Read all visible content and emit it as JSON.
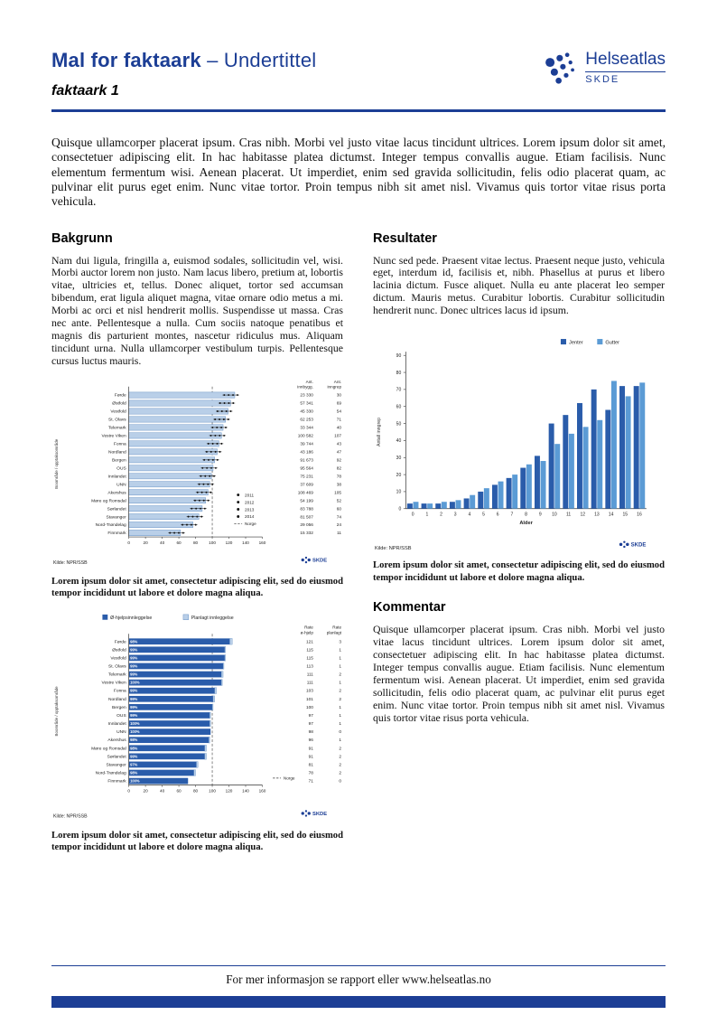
{
  "header": {
    "title_main": "Mal for faktaark",
    "title_sub": "– Undertittel",
    "subtitle": "faktaark 1",
    "logo": {
      "name": "Helseatlas",
      "org": "SKDE"
    }
  },
  "intro": "Quisque ullamcorper placerat ipsum. Cras nibh. Morbi vel justo vitae lacus tincidunt ultrices. Lorem ipsum dolor sit amet, consectetuer adipiscing elit. In hac habitasse platea dictumst. Integer tempus convallis augue. Etiam facilisis. Nunc elementum fermentum wisi. Aenean placerat. Ut imperdiet, enim sed gravida sollicitudin, felis odio placerat quam, ac pulvinar elit purus eget enim. Nunc vitae tortor. Proin tempus nibh sit amet nisl. Vivamus quis tortor vitae risus porta vehicula.",
  "sections": {
    "bakgrunn": {
      "heading": "Bakgrunn",
      "body": "Nam dui ligula, fringilla a, euismod sodales, sollicitudin vel, wisi. Morbi auctor lorem non justo. Nam lacus libero, pretium at, lobortis vitae, ultricies et, tellus. Donec aliquet, tortor sed accumsan bibendum, erat ligula aliquet magna, vitae ornare odio metus a mi. Morbi ac orci et nisl hendrerit mollis. Suspendisse ut massa. Cras nec ante. Pellentesque a nulla. Cum sociis natoque penatibus et magnis dis parturient montes, nascetur ridiculus mus. Aliquam tincidunt urna. Nulla ullamcorper vestibulum turpis. Pellentesque cursus luctus mauris."
    },
    "resultater": {
      "heading": "Resultater",
      "body": "Nunc sed pede. Praesent vitae lectus. Praesent neque justo, vehicula eget, interdum id, facilisis et, nibh. Phasellus at purus et libero lacinia dictum. Fusce aliquet. Nulla eu ante placerat leo semper dictum. Mauris metus. Curabitur lobortis. Curabitur sollicitudin hendrerit nunc. Donec ultrices lacus id ipsum."
    },
    "kommentar": {
      "heading": "Kommentar",
      "body": "Quisque ullamcorper placerat ipsum. Cras nibh. Morbi vel justo vitae lacus tincidunt ultrices. Lorem ipsum dolor sit amet, consectetuer adipiscing elit. In hac habitasse platea dictumst. Integer tempus convallis augue. Etiam facilisis. Nunc elementum fermentum wisi. Aenean placerat. Ut imperdiet, enim sed gravida sollicitudin, felis odio placerat quam, ac pulvinar elit purus eget enim. Nunc vitae tortor. Proin tempus nibh sit amet nisl. Vivamus quis tortor vitae risus porta vehicula."
    }
  },
  "captions": {
    "chart1": "Lorem ipsum dolor sit amet, consectetur adipiscing elit, sed do eiusmod tempor incididunt ut labore et dolore magna aliqua.",
    "chart2": "Lorem ipsum dolor sit amet, consectetur adipiscing elit, sed do eiusmod tempor incididunt ut labore et dolore magna aliqua.",
    "chart3": "Lorem ipsum dolor sit amet, consectetur adipiscing elit, sed do eiusmod tempor incididunt ut labore et dolore magna aliqua."
  },
  "footer": {
    "text": "For mer informasjon se rapport eller www.helseatlas.no"
  },
  "colors": {
    "brand": "#1c3e95",
    "dark_bar": "#2a5caa",
    "light_bar": "#b9cfe8",
    "medium_bar": "#5b9bd5",
    "bar_stroke": "#4e7fba"
  },
  "chart_data": [
    {
      "type": "bar",
      "orientation": "horizontal",
      "ylabel": "Boområde / opptaksområde",
      "xlim": [
        0,
        160
      ],
      "xticks": [
        0,
        20,
        40,
        60,
        80,
        100,
        120,
        140,
        160
      ],
      "categories": [
        "Førde",
        "Østfold",
        "Vestfold",
        "St. Olavs",
        "Telemark",
        "Vestre Viken",
        "Fonna",
        "Nordland",
        "Bergen",
        "OUS",
        "Innlandet",
        "UNN",
        "Akershus",
        "Møre og Romsdal",
        "Sørlandet",
        "Stavanger",
        "Nord-Trøndelag",
        "Finnmark"
      ],
      "values": [
        127,
        122,
        119,
        116,
        113,
        111,
        108,
        106,
        103,
        101,
        99,
        97,
        95,
        92,
        88,
        84,
        77,
        62
      ],
      "norge_line": 100,
      "legend": [
        "2011",
        "2012",
        "2013",
        "2014",
        "Norge"
      ],
      "table": {
        "headers": [
          [
            "Ant.",
            "innbygg."
          ],
          [
            "Ant.",
            "inngrep"
          ]
        ],
        "rows": [
          [
            "23 330",
            "30"
          ],
          [
            "57 341",
            "69"
          ],
          [
            "45 330",
            "54"
          ],
          [
            "62 253",
            "71"
          ],
          [
            "33 344",
            "40"
          ],
          [
            "100 582",
            "107"
          ],
          [
            "39 744",
            "43"
          ],
          [
            "43 186",
            "47"
          ],
          [
            "91 673",
            "92"
          ],
          [
            "95 564",
            "82"
          ],
          [
            "75 231",
            "78"
          ],
          [
            "37 609",
            "38"
          ],
          [
            "108 469",
            "105"
          ],
          [
            "54 199",
            "52"
          ],
          [
            "83 788",
            "60"
          ],
          [
            "81 507",
            "74"
          ],
          [
            "29 056",
            "24"
          ],
          [
            "15 332",
            "11"
          ]
        ]
      },
      "source": "Kilde: NPR/SSB",
      "logo": "SKDE"
    },
    {
      "type": "bar",
      "orientation": "horizontal",
      "stacked": true,
      "ylabel": "Boområde / opptaksområde",
      "xlim": [
        0,
        160
      ],
      "xticks": [
        0,
        20,
        40,
        60,
        80,
        100,
        120,
        140,
        160
      ],
      "categories": [
        "Førde",
        "Østfold",
        "Vestfold",
        "St. Olavs",
        "Telemark",
        "Vestre Viken",
        "Fonna",
        "Nordland",
        "Bergen",
        "OUS",
        "Innlandet",
        "UNN",
        "Akershus",
        "Møre og Romsdal",
        "Sørlandet",
        "Stavanger",
        "Nord-Trøndelag",
        "Finnmark"
      ],
      "series": [
        {
          "name": "Ø-hjelpsinnleggelse",
          "values": [
            121,
            115,
            115,
            113,
            111,
            111,
            103,
            101,
            100,
            97,
            97,
            98,
            96,
            91,
            91,
            81,
            78,
            71
          ]
        },
        {
          "name": "Planlagt innleggelse",
          "values": [
            3,
            1,
            1,
            1,
            2,
            1,
            2,
            2,
            1,
            1,
            1,
            0,
            1,
            2,
            2,
            2,
            2,
            0
          ]
        }
      ],
      "pct_labels": [
        "98%",
        "99%",
        "99%",
        "99%",
        "99%",
        "100%",
        "99%",
        "99%",
        "99%",
        "99%",
        "100%",
        "100%",
        "98%",
        "98%",
        "99%",
        "97%",
        "98%",
        "100%"
      ],
      "norge_line": 100,
      "norge_label": "Norge",
      "table": {
        "headers": [
          [
            "Rate",
            "ø-hjelp"
          ],
          [
            "Rate",
            "planlagt"
          ]
        ],
        "rows": [
          [
            "121",
            "3"
          ],
          [
            "115",
            "1"
          ],
          [
            "115",
            "1"
          ],
          [
            "113",
            "1"
          ],
          [
            "111",
            "2"
          ],
          [
            "111",
            "1"
          ],
          [
            "103",
            "2"
          ],
          [
            "101",
            "2"
          ],
          [
            "100",
            "1"
          ],
          [
            "97",
            "1"
          ],
          [
            "97",
            "1"
          ],
          [
            "98",
            "0"
          ],
          [
            "96",
            "1"
          ],
          [
            "91",
            "2"
          ],
          [
            "91",
            "2"
          ],
          [
            "81",
            "2"
          ],
          [
            "78",
            "2"
          ],
          [
            "71",
            "0"
          ]
        ]
      },
      "source": "Kilde: NPR/SSB",
      "logo": "SKDE"
    },
    {
      "type": "bar",
      "orientation": "vertical",
      "xlabel": "Alder",
      "ylabel": "Antall inngrep",
      "ylim": [
        0,
        90
      ],
      "yticks": [
        0,
        10,
        20,
        30,
        40,
        50,
        60,
        70,
        80,
        90
      ],
      "categories": [
        "0",
        "1",
        "2",
        "3",
        "4",
        "5",
        "6",
        "7",
        "8",
        "9",
        "10",
        "11",
        "12",
        "13",
        "14",
        "15",
        "16"
      ],
      "series": [
        {
          "name": "Jenter",
          "values": [
            3,
            3,
            3,
            4,
            6,
            10,
            14,
            18,
            24,
            31,
            50,
            55,
            62,
            70,
            58,
            72,
            72
          ]
        },
        {
          "name": "Gutter",
          "values": [
            4,
            3,
            4,
            5,
            8,
            12,
            16,
            20,
            26,
            28,
            38,
            44,
            48,
            52,
            75,
            66,
            74
          ]
        }
      ],
      "source": "Kilde: NPR/SSB",
      "logo": "SKDE"
    }
  ]
}
